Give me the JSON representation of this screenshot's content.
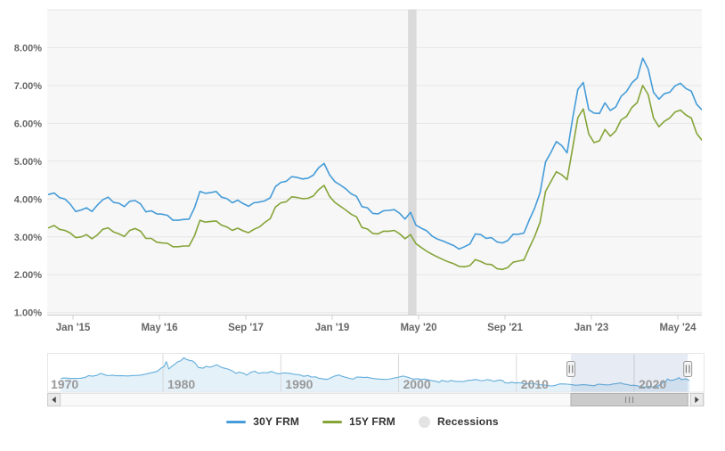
{
  "chart_data": {
    "type": "line",
    "title": "",
    "unit": "percent",
    "grid": true,
    "y_axis": {
      "range": [
        0.92,
        9.05
      ],
      "ticks": [
        {
          "value": 1,
          "label": "1.00%"
        },
        {
          "value": 2,
          "label": "2.00%"
        },
        {
          "value": 3,
          "label": "3.00%"
        },
        {
          "value": 4,
          "label": "4.00%"
        },
        {
          "value": 5,
          "label": "5.00%"
        },
        {
          "value": 6,
          "label": "6.00%"
        },
        {
          "value": 7,
          "label": "7.00%"
        },
        {
          "value": 8,
          "label": "8.00%"
        }
      ]
    },
    "x_axis": {
      "range": [
        2014.56,
        2024.72
      ],
      "ticks": [
        {
          "t": 2015.0,
          "label": "Jan '15"
        },
        {
          "t": 2016.333,
          "label": "May '16"
        },
        {
          "t": 2017.667,
          "label": "Sep '17"
        },
        {
          "t": 2019.0,
          "label": "Jan '19"
        },
        {
          "t": 2020.333,
          "label": "May '20"
        },
        {
          "t": 2021.667,
          "label": "Sep '21"
        },
        {
          "t": 2023.0,
          "label": "Jan '23"
        },
        {
          "t": 2024.333,
          "label": "May '24"
        }
      ]
    },
    "series": [
      {
        "name": "30Y FRM",
        "color": "#459CD8",
        "start_year": 2014,
        "start_month": 8,
        "step": "monthly",
        "values": [
          4.12,
          4.16,
          4.04,
          4.0,
          3.86,
          3.67,
          3.71,
          3.77,
          3.67,
          3.84,
          3.98,
          4.05,
          3.91,
          3.89,
          3.8,
          3.94,
          3.96,
          3.87,
          3.66,
          3.69,
          3.61,
          3.6,
          3.57,
          3.44,
          3.44,
          3.46,
          3.47,
          3.77,
          4.2,
          4.15,
          4.17,
          4.2,
          4.05,
          4.01,
          3.9,
          3.97,
          3.88,
          3.81,
          3.9,
          3.92,
          3.95,
          4.03,
          4.33,
          4.44,
          4.47,
          4.59,
          4.57,
          4.53,
          4.55,
          4.63,
          4.83,
          4.94,
          4.64,
          4.46,
          4.37,
          4.27,
          4.14,
          4.07,
          3.8,
          3.77,
          3.62,
          3.61,
          3.69,
          3.7,
          3.72,
          3.62,
          3.47,
          3.65,
          3.31,
          3.23,
          3.16,
          3.02,
          2.94,
          2.89,
          2.83,
          2.77,
          2.68,
          2.74,
          2.81,
          3.08,
          3.06,
          2.96,
          2.98,
          2.87,
          2.84,
          2.9,
          3.07,
          3.07,
          3.1,
          3.45,
          3.76,
          4.17,
          4.98,
          5.23,
          5.52,
          5.41,
          5.22,
          6.11,
          6.9,
          7.08,
          6.36,
          6.27,
          6.26,
          6.54,
          6.34,
          6.43,
          6.71,
          6.84,
          7.07,
          7.2,
          7.72,
          7.44,
          6.82,
          6.64,
          6.78,
          6.82,
          6.99,
          7.06,
          6.92,
          6.85,
          6.5,
          6.35
        ]
      },
      {
        "name": "15Y FRM",
        "color": "#85A438",
        "start_year": 2014,
        "start_month": 8,
        "step": "monthly",
        "values": [
          3.24,
          3.3,
          3.2,
          3.17,
          3.1,
          2.98,
          3.0,
          3.06,
          2.95,
          3.05,
          3.2,
          3.24,
          3.13,
          3.08,
          3.01,
          3.17,
          3.22,
          3.15,
          2.96,
          2.96,
          2.86,
          2.84,
          2.83,
          2.74,
          2.74,
          2.76,
          2.76,
          3.03,
          3.44,
          3.39,
          3.41,
          3.42,
          3.31,
          3.26,
          3.17,
          3.23,
          3.16,
          3.11,
          3.2,
          3.26,
          3.38,
          3.48,
          3.79,
          3.9,
          3.93,
          4.06,
          4.04,
          4.01,
          4.02,
          4.08,
          4.25,
          4.36,
          4.07,
          3.91,
          3.81,
          3.71,
          3.6,
          3.53,
          3.25,
          3.21,
          3.09,
          3.08,
          3.15,
          3.15,
          3.17,
          3.08,
          2.95,
          3.06,
          2.82,
          2.72,
          2.62,
          2.54,
          2.47,
          2.4,
          2.34,
          2.29,
          2.22,
          2.21,
          2.24,
          2.4,
          2.35,
          2.28,
          2.27,
          2.16,
          2.14,
          2.19,
          2.33,
          2.36,
          2.39,
          2.71,
          3.01,
          3.39,
          4.2,
          4.46,
          4.72,
          4.64,
          4.51,
          5.33,
          6.15,
          6.38,
          5.72,
          5.49,
          5.54,
          5.84,
          5.66,
          5.8,
          6.09,
          6.18,
          6.42,
          6.55,
          7.0,
          6.76,
          6.14,
          5.91,
          6.05,
          6.14,
          6.3,
          6.35,
          6.22,
          6.14,
          5.73,
          5.55
        ]
      }
    ],
    "recessions": {
      "color": "#dadada",
      "bands": [
        {
          "from": 2020.17,
          "to": 2020.3
        }
      ]
    },
    "navigator": {
      "line_color": "#63AEDC",
      "fill_color": "rgba(96,170,215,0.16)",
      "selection_color": "rgba(82,110,173,0.14)",
      "selection": {
        "from": 2014.63,
        "to": 2024.55
      },
      "decade_labels": [
        {
          "t": 1970,
          "label": "1970"
        },
        {
          "t": 1980,
          "label": "1980"
        },
        {
          "t": 1990,
          "label": "1990"
        },
        {
          "t": 2000,
          "label": "2000"
        },
        {
          "t": 2010,
          "label": "2010"
        },
        {
          "t": 2020,
          "label": "2020"
        }
      ],
      "points": [
        [
          1971.33,
          7.33
        ],
        [
          1971.6,
          7.6
        ],
        [
          1971.9,
          7.48
        ],
        [
          1972.2,
          7.3
        ],
        [
          1972.6,
          7.38
        ],
        [
          1973.0,
          7.44
        ],
        [
          1973.4,
          7.9
        ],
        [
          1973.7,
          8.85
        ],
        [
          1974.0,
          8.54
        ],
        [
          1974.4,
          9.0
        ],
        [
          1974.7,
          10.03
        ],
        [
          1975.0,
          9.43
        ],
        [
          1975.3,
          8.8
        ],
        [
          1975.7,
          9.1
        ],
        [
          1976.0,
          8.76
        ],
        [
          1976.5,
          8.85
        ],
        [
          1977.0,
          8.65
        ],
        [
          1977.5,
          8.9
        ],
        [
          1978.0,
          9.02
        ],
        [
          1978.5,
          9.6
        ],
        [
          1979.0,
          10.39
        ],
        [
          1979.5,
          11.1
        ],
        [
          1979.85,
          12.9
        ],
        [
          1980.1,
          13.7
        ],
        [
          1980.28,
          16.35
        ],
        [
          1980.5,
          12.4
        ],
        [
          1980.75,
          13.8
        ],
        [
          1981.0,
          14.9
        ],
        [
          1981.25,
          16.3
        ],
        [
          1981.5,
          16.7
        ],
        [
          1981.78,
          18.45
        ],
        [
          1982.0,
          17.5
        ],
        [
          1982.25,
          17.0
        ],
        [
          1982.5,
          16.7
        ],
        [
          1982.75,
          15.4
        ],
        [
          1983.0,
          13.2
        ],
        [
          1983.4,
          12.8
        ],
        [
          1983.65,
          13.8
        ],
        [
          1984.0,
          13.4
        ],
        [
          1984.3,
          13.9
        ],
        [
          1984.55,
          14.67
        ],
        [
          1984.85,
          13.6
        ],
        [
          1985.1,
          13.0
        ],
        [
          1985.5,
          12.4
        ],
        [
          1985.9,
          11.3
        ],
        [
          1986.2,
          10.1
        ],
        [
          1986.5,
          10.7
        ],
        [
          1986.9,
          9.9
        ],
        [
          1987.1,
          9.1
        ],
        [
          1987.45,
          10.6
        ],
        [
          1987.8,
          11.2
        ],
        [
          1988.1,
          10.1
        ],
        [
          1988.5,
          10.5
        ],
        [
          1988.9,
          10.4
        ],
        [
          1989.2,
          11.1
        ],
        [
          1989.6,
          10.1
        ],
        [
          1989.9,
          9.8
        ],
        [
          1990.2,
          10.3
        ],
        [
          1990.55,
          10.2
        ],
        [
          1990.9,
          9.9
        ],
        [
          1991.2,
          9.5
        ],
        [
          1991.6,
          9.3
        ],
        [
          1991.95,
          8.5
        ],
        [
          1992.3,
          8.9
        ],
        [
          1992.6,
          8.1
        ],
        [
          1992.95,
          8.2
        ],
        [
          1993.2,
          7.5
        ],
        [
          1993.6,
          7.1
        ],
        [
          1993.85,
          6.83
        ],
        [
          1994.1,
          7.2
        ],
        [
          1994.5,
          8.5
        ],
        [
          1994.95,
          9.2
        ],
        [
          1995.2,
          8.5
        ],
        [
          1995.6,
          7.8
        ],
        [
          1995.95,
          7.2
        ],
        [
          1996.15,
          7.0
        ],
        [
          1996.45,
          8.1
        ],
        [
          1996.8,
          8.0
        ],
        [
          1997.1,
          7.8
        ],
        [
          1997.3,
          8.0
        ],
        [
          1997.7,
          7.5
        ],
        [
          1998.1,
          7.1
        ],
        [
          1998.5,
          6.95
        ],
        [
          1998.8,
          6.8
        ],
        [
          1999.1,
          6.9
        ],
        [
          1999.5,
          7.4
        ],
        [
          1999.9,
          7.9
        ],
        [
          2000.15,
          8.3
        ],
        [
          2000.4,
          8.64
        ],
        [
          2000.9,
          7.75
        ],
        [
          2001.2,
          7.0
        ],
        [
          2001.6,
          7.2
        ],
        [
          2001.95,
          6.75
        ],
        [
          2002.2,
          7.0
        ],
        [
          2002.6,
          6.5
        ],
        [
          2002.95,
          6.05
        ],
        [
          2003.2,
          5.8
        ],
        [
          2003.45,
          5.23
        ],
        [
          2003.65,
          6.3
        ],
        [
          2003.95,
          5.9
        ],
        [
          2004.2,
          5.6
        ],
        [
          2004.45,
          6.3
        ],
        [
          2004.8,
          5.75
        ],
        [
          2005.1,
          5.75
        ],
        [
          2005.5,
          5.65
        ],
        [
          2005.9,
          6.3
        ],
        [
          2006.2,
          6.4
        ],
        [
          2006.55,
          6.79
        ],
        [
          2006.9,
          6.25
        ],
        [
          2007.2,
          6.2
        ],
        [
          2007.55,
          6.7
        ],
        [
          2007.9,
          6.25
        ],
        [
          2008.1,
          5.75
        ],
        [
          2008.25,
          6.05
        ],
        [
          2008.45,
          6.35
        ],
        [
          2008.6,
          6.52
        ],
        [
          2008.85,
          6.1
        ],
        [
          2009.05,
          5.05
        ],
        [
          2009.35,
          4.85
        ],
        [
          2009.6,
          5.4
        ],
        [
          2009.9,
          4.9
        ],
        [
          2010.1,
          5.05
        ],
        [
          2010.35,
          5.0
        ],
        [
          2010.6,
          4.6
        ],
        [
          2010.85,
          4.25
        ],
        [
          2011.1,
          4.8
        ],
        [
          2011.5,
          4.55
        ],
        [
          2011.95,
          3.95
        ],
        [
          2012.3,
          3.9
        ],
        [
          2012.6,
          3.6
        ],
        [
          2012.9,
          3.35
        ],
        [
          2013.2,
          3.5
        ],
        [
          2013.55,
          4.1
        ],
        [
          2013.7,
          4.45
        ],
        [
          2014.0,
          4.4
        ],
        [
          2014.3,
          4.3
        ],
        [
          2014.63,
          4.1
        ],
        [
          2015.0,
          3.7
        ],
        [
          2015.3,
          3.75
        ],
        [
          2015.55,
          4.0
        ],
        [
          2015.9,
          3.95
        ],
        [
          2016.1,
          3.75
        ],
        [
          2016.6,
          3.45
        ],
        [
          2016.95,
          4.3
        ],
        [
          2017.2,
          4.15
        ],
        [
          2017.6,
          3.9
        ],
        [
          2017.95,
          3.95
        ],
        [
          2018.2,
          4.4
        ],
        [
          2018.5,
          4.55
        ],
        [
          2018.85,
          4.94
        ],
        [
          2019.1,
          4.4
        ],
        [
          2019.4,
          4.1
        ],
        [
          2019.7,
          3.6
        ],
        [
          2019.95,
          3.7
        ],
        [
          2020.2,
          3.5
        ],
        [
          2020.5,
          3.1
        ],
        [
          2020.95,
          2.67
        ],
        [
          2021.2,
          3.05
        ],
        [
          2021.55,
          2.87
        ],
        [
          2021.9,
          3.1
        ],
        [
          2022.1,
          3.55
        ],
        [
          2022.25,
          4.4
        ],
        [
          2022.45,
          5.3
        ],
        [
          2022.55,
          5.6
        ],
        [
          2022.65,
          5.2
        ],
        [
          2022.8,
          6.7
        ],
        [
          2022.85,
          7.08
        ],
        [
          2023.0,
          6.35
        ],
        [
          2023.25,
          6.4
        ],
        [
          2023.5,
          6.8
        ],
        [
          2023.65,
          7.2
        ],
        [
          2023.8,
          7.79
        ],
        [
          2024.0,
          6.7
        ],
        [
          2024.15,
          6.9
        ],
        [
          2024.35,
          7.05
        ],
        [
          2024.5,
          6.85
        ],
        [
          2024.62,
          6.45
        ],
        [
          2024.7,
          6.35
        ]
      ]
    }
  },
  "legend": {
    "items": [
      {
        "label": "30Y FRM",
        "marker": "line",
        "color": "#459CD8"
      },
      {
        "label": "15Y FRM",
        "marker": "line",
        "color": "#85A438"
      },
      {
        "label": "Recessions",
        "marker": "circle",
        "color": "#e3e3e3"
      }
    ]
  },
  "scrollbar": {
    "icons": {
      "left": "left-arrow-icon",
      "right": "right-arrow-icon",
      "grip": "grip-icon"
    }
  }
}
